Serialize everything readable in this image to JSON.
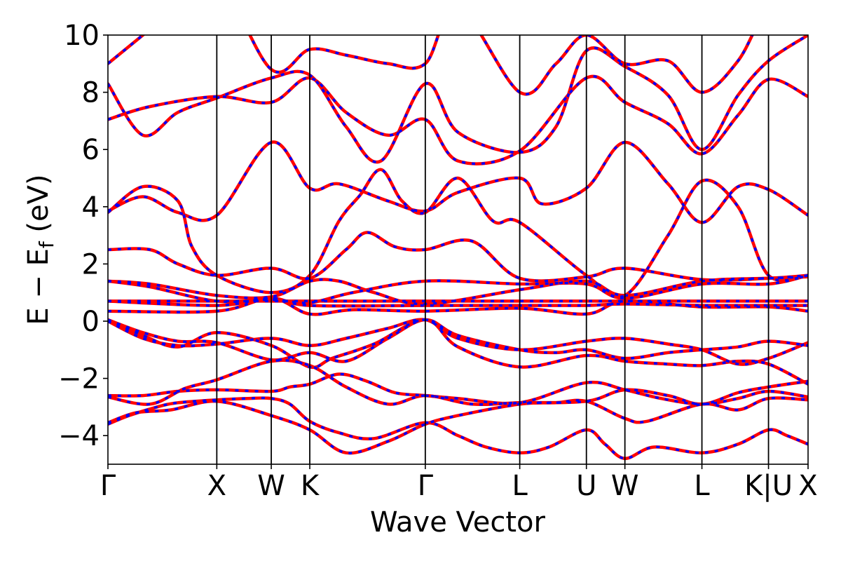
{
  "chart_data": {
    "type": "line",
    "xlabel": "Wave Vector",
    "ylabel_main": "E − E",
    "ylabel_sub": "f",
    "ylabel_unit": " (eV)",
    "ylim": [
      -5,
      10
    ],
    "yticks": [
      -4,
      -2,
      0,
      2,
      4,
      6,
      8,
      10
    ],
    "ytick_labels": [
      "−4",
      "−2",
      "0",
      "2",
      "4",
      "6",
      "8",
      "10"
    ],
    "xlim": [
      0,
      1
    ],
    "kpoints": [
      {
        "label": "Γ",
        "x": 0.0
      },
      {
        "label": "X",
        "x": 0.1555
      },
      {
        "label": "W",
        "x": 0.2333
      },
      {
        "label": "K",
        "x": 0.2883
      },
      {
        "label": "Γ",
        "x": 0.4533
      },
      {
        "label": "L",
        "x": 0.5882
      },
      {
        "label": "U",
        "x": 0.6834
      },
      {
        "label": "W",
        "x": 0.7384
      },
      {
        "label": "L",
        "x": 0.8484
      },
      {
        "label": "K|U",
        "x": 0.9435
      },
      {
        "label": "X",
        "x": 1.0
      }
    ],
    "grid": false,
    "series_styles": [
      {
        "color": "#ff0000",
        "style": "solid"
      },
      {
        "color": "#0000ff",
        "style": "dotted"
      }
    ],
    "bands": [
      [
        [
          0,
          -3.6
        ],
        [
          0.03,
          -3.3
        ],
        [
          0.07,
          -3.0
        ],
        [
          0.1,
          -2.85
        ],
        [
          0.1555,
          -2.75
        ],
        [
          0.2,
          -2.7
        ],
        [
          0.2333,
          -2.7
        ],
        [
          0.26,
          -2.9
        ],
        [
          0.2883,
          -3.5
        ],
        [
          0.33,
          -3.9
        ],
        [
          0.38,
          -4.1
        ],
        [
          0.4533,
          -3.55
        ],
        [
          0.5,
          -4.0
        ],
        [
          0.54,
          -4.4
        ],
        [
          0.5882,
          -4.6
        ],
        [
          0.63,
          -4.4
        ],
        [
          0.6834,
          -3.8
        ],
        [
          0.71,
          -4.3
        ],
        [
          0.7384,
          -4.8
        ],
        [
          0.78,
          -4.4
        ],
        [
          0.8484,
          -4.6
        ],
        [
          0.9,
          -4.3
        ],
        [
          0.9435,
          -3.8
        ],
        [
          0.97,
          -4.0
        ],
        [
          1.0,
          -4.3
        ]
      ],
      [
        [
          0,
          -3.55
        ],
        [
          0.04,
          -3.2
        ],
        [
          0.09,
          -3.1
        ],
        [
          0.1555,
          -2.8
        ],
        [
          0.2333,
          -3.3
        ],
        [
          0.2883,
          -3.8
        ],
        [
          0.34,
          -4.6
        ],
        [
          0.4,
          -4.2
        ],
        [
          0.4533,
          -3.6
        ],
        [
          0.5,
          -3.3
        ],
        [
          0.5882,
          -2.9
        ],
        [
          0.64,
          -2.85
        ],
        [
          0.6834,
          -2.8
        ],
        [
          0.7384,
          -3.4
        ],
        [
          0.77,
          -3.5
        ],
        [
          0.8484,
          -2.9
        ],
        [
          0.9,
          -3.1
        ],
        [
          0.9435,
          -2.7
        ],
        [
          1.0,
          -2.75
        ]
      ],
      [
        [
          0,
          -2.6
        ],
        [
          0.05,
          -2.6
        ],
        [
          0.1,
          -2.45
        ],
        [
          0.1555,
          -2.4
        ],
        [
          0.2333,
          -2.45
        ],
        [
          0.26,
          -2.3
        ],
        [
          0.2883,
          -2.2
        ],
        [
          0.33,
          -1.85
        ],
        [
          0.37,
          -2.1
        ],
        [
          0.41,
          -2.5
        ],
        [
          0.4533,
          -2.6
        ],
        [
          0.5,
          -2.7
        ],
        [
          0.5882,
          -2.85
        ],
        [
          0.6834,
          -2.15
        ],
        [
          0.7384,
          -2.4
        ],
        [
          0.79,
          -2.7
        ],
        [
          0.8484,
          -2.9
        ],
        [
          0.9,
          -2.7
        ],
        [
          0.9435,
          -2.45
        ],
        [
          1.0,
          -2.65
        ]
      ],
      [
        [
          0,
          -2.65
        ],
        [
          0.06,
          -2.9
        ],
        [
          0.11,
          -2.35
        ],
        [
          0.1555,
          -2.05
        ],
        [
          0.2333,
          -1.4
        ],
        [
          0.2883,
          -1.55
        ],
        [
          0.34,
          -2.3
        ],
        [
          0.4,
          -2.9
        ],
        [
          0.4533,
          -2.6
        ],
        [
          0.52,
          -2.9
        ],
        [
          0.5882,
          -2.85
        ],
        [
          0.6834,
          -2.8
        ],
        [
          0.7384,
          -2.4
        ],
        [
          0.8,
          -2.6
        ],
        [
          0.8484,
          -2.9
        ],
        [
          0.9,
          -2.5
        ],
        [
          0.9435,
          -2.3
        ],
        [
          1.0,
          -2.1
        ]
      ],
      [
        [
          0,
          0.05
        ],
        [
          0.05,
          -0.4
        ],
        [
          0.1,
          -0.7
        ],
        [
          0.1555,
          -0.75
        ],
        [
          0.2333,
          -1.35
        ],
        [
          0.2883,
          -1.1
        ],
        [
          0.34,
          -1.4
        ],
        [
          0.4,
          -0.6
        ],
        [
          0.4533,
          0.05
        ],
        [
          0.5,
          -0.5
        ],
        [
          0.5882,
          -1.0
        ],
        [
          0.64,
          -1.1
        ],
        [
          0.6834,
          -1.0
        ],
        [
          0.7384,
          -1.3
        ],
        [
          0.8,
          -1.1
        ],
        [
          0.8484,
          -1.0
        ],
        [
          0.9,
          -0.9
        ],
        [
          0.9435,
          -0.7
        ],
        [
          1.0,
          -0.85
        ]
      ],
      [
        [
          0,
          0.0
        ],
        [
          0.05,
          -0.6
        ],
        [
          0.1,
          -0.85
        ],
        [
          0.1555,
          -0.8
        ],
        [
          0.2333,
          -0.6
        ],
        [
          0.2883,
          -0.85
        ],
        [
          0.34,
          -0.6
        ],
        [
          0.4,
          -0.25
        ],
        [
          0.4533,
          0.05
        ],
        [
          0.5,
          -0.6
        ],
        [
          0.5882,
          -1.0
        ],
        [
          0.6834,
          -0.7
        ],
        [
          0.7384,
          -0.6
        ],
        [
          0.8,
          -0.8
        ],
        [
          0.8484,
          -1.0
        ],
        [
          0.9,
          -1.5
        ],
        [
          0.9435,
          -1.3
        ],
        [
          1.0,
          -0.75
        ]
      ],
      [
        [
          0,
          0.05
        ],
        [
          0.05,
          -0.5
        ],
        [
          0.1,
          -0.9
        ],
        [
          0.1555,
          -0.4
        ],
        [
          0.2333,
          -0.85
        ],
        [
          0.2883,
          -1.6
        ],
        [
          0.32,
          -1.3
        ],
        [
          0.38,
          -0.8
        ],
        [
          0.4533,
          0.05
        ],
        [
          0.5,
          -0.9
        ],
        [
          0.5882,
          -1.6
        ],
        [
          0.6834,
          -1.2
        ],
        [
          0.7384,
          -1.4
        ],
        [
          0.8,
          -1.5
        ],
        [
          0.8484,
          -1.55
        ],
        [
          0.9,
          -1.4
        ],
        [
          0.9435,
          -1.5
        ],
        [
          1.0,
          -2.2
        ]
      ],
      [
        [
          0,
          0.35
        ],
        [
          0.1555,
          0.35
        ],
        [
          0.2333,
          0.8
        ],
        [
          0.2883,
          0.25
        ],
        [
          0.35,
          0.4
        ],
        [
          0.4533,
          0.35
        ],
        [
          0.5882,
          0.45
        ],
        [
          0.6834,
          0.25
        ],
        [
          0.7384,
          0.7
        ],
        [
          0.8484,
          0.5
        ],
        [
          0.9435,
          0.5
        ],
        [
          1.0,
          0.35
        ]
      ],
      [
        [
          0,
          0.7
        ],
        [
          0.1555,
          0.55
        ],
        [
          0.2333,
          0.8
        ],
        [
          0.2883,
          0.55
        ],
        [
          0.4533,
          0.55
        ],
        [
          0.5882,
          0.55
        ],
        [
          0.6834,
          0.55
        ],
        [
          0.7384,
          0.6
        ],
        [
          0.8484,
          0.55
        ],
        [
          0.9435,
          0.55
        ],
        [
          1.0,
          0.55
        ]
      ],
      [
        [
          0,
          0.7
        ],
        [
          0.1555,
          0.7
        ],
        [
          0.2333,
          0.7
        ],
        [
          0.2883,
          0.7
        ],
        [
          0.4533,
          0.7
        ],
        [
          0.5882,
          0.7
        ],
        [
          0.6834,
          0.7
        ],
        [
          0.7384,
          0.7
        ],
        [
          0.8484,
          0.7
        ],
        [
          0.9435,
          0.7
        ],
        [
          1.0,
          0.7
        ]
      ],
      [
        [
          0,
          1.4
        ],
        [
          0.06,
          1.2
        ],
        [
          0.1555,
          0.7
        ],
        [
          0.2333,
          0.75
        ],
        [
          0.2883,
          0.65
        ],
        [
          0.35,
          1.0
        ],
        [
          0.4533,
          1.4
        ],
        [
          0.5882,
          1.3
        ],
        [
          0.6834,
          1.3
        ],
        [
          0.7384,
          0.8
        ],
        [
          0.8484,
          1.3
        ],
        [
          0.9435,
          1.3
        ],
        [
          1.0,
          1.6
        ]
      ],
      [
        [
          0,
          1.4
        ],
        [
          0.06,
          1.3
        ],
        [
          0.1555,
          0.9
        ],
        [
          0.2333,
          0.85
        ],
        [
          0.2883,
          1.4
        ],
        [
          0.33,
          1.4
        ],
        [
          0.38,
          1.0
        ],
        [
          0.4533,
          0.6
        ],
        [
          0.5882,
          1.1
        ],
        [
          0.6834,
          1.4
        ],
        [
          0.7384,
          0.9
        ],
        [
          0.8484,
          1.4
        ],
        [
          0.9435,
          1.5
        ],
        [
          1.0,
          1.55
        ]
      ],
      [
        [
          0,
          2.5
        ],
        [
          0.06,
          2.5
        ],
        [
          0.1,
          2.0
        ],
        [
          0.1555,
          1.6
        ],
        [
          0.2333,
          1.85
        ],
        [
          0.2883,
          1.5
        ],
        [
          0.34,
          2.5
        ],
        [
          0.37,
          3.1
        ],
        [
          0.41,
          2.6
        ],
        [
          0.4533,
          2.5
        ],
        [
          0.52,
          2.8
        ],
        [
          0.5882,
          1.5
        ],
        [
          0.6834,
          1.55
        ],
        [
          0.7384,
          1.85
        ],
        [
          0.8484,
          1.45
        ],
        [
          0.9435,
          1.5
        ],
        [
          1.0,
          1.6
        ]
      ],
      [
        [
          0,
          3.8
        ],
        [
          0.05,
          4.7
        ],
        [
          0.1,
          4.2
        ],
        [
          0.12,
          2.6
        ],
        [
          0.1555,
          1.6
        ],
        [
          0.2333,
          1.0
        ],
        [
          0.2883,
          1.6
        ],
        [
          0.33,
          3.5
        ],
        [
          0.36,
          4.4
        ],
        [
          0.39,
          5.3
        ],
        [
          0.42,
          4.2
        ],
        [
          0.4533,
          3.8
        ],
        [
          0.5,
          5.0
        ],
        [
          0.55,
          3.5
        ],
        [
          0.5882,
          3.45
        ],
        [
          0.6834,
          1.6
        ],
        [
          0.7384,
          0.9
        ],
        [
          0.8,
          3.0
        ],
        [
          0.8484,
          4.9
        ],
        [
          0.9,
          4.0
        ],
        [
          0.9435,
          1.6
        ],
        [
          1.0,
          1.6
        ]
      ],
      [
        [
          0,
          3.85
        ],
        [
          0.05,
          4.35
        ],
        [
          0.1,
          3.8
        ],
        [
          0.1555,
          3.7
        ],
        [
          0.2333,
          6.25
        ],
        [
          0.2883,
          4.65
        ],
        [
          0.33,
          4.8
        ],
        [
          0.4,
          4.2
        ],
        [
          0.4533,
          3.85
        ],
        [
          0.5,
          4.5
        ],
        [
          0.5882,
          5.0
        ],
        [
          0.62,
          4.1
        ],
        [
          0.6834,
          4.65
        ],
        [
          0.7384,
          6.25
        ],
        [
          0.8,
          4.8
        ],
        [
          0.8484,
          3.45
        ],
        [
          0.9,
          4.7
        ],
        [
          0.9435,
          4.6
        ],
        [
          1.0,
          3.7
        ]
      ],
      [
        [
          0,
          7.05
        ],
        [
          0.06,
          7.5
        ],
        [
          0.1555,
          7.85
        ],
        [
          0.2333,
          7.65
        ],
        [
          0.2883,
          8.5
        ],
        [
          0.34,
          7.3
        ],
        [
          0.4,
          6.5
        ],
        [
          0.4533,
          7.05
        ],
        [
          0.5,
          5.6
        ],
        [
          0.5882,
          5.95
        ],
        [
          0.6834,
          8.5
        ],
        [
          0.7384,
          7.65
        ],
        [
          0.8,
          6.9
        ],
        [
          0.8484,
          5.85
        ],
        [
          0.9,
          7.2
        ],
        [
          0.9435,
          8.45
        ],
        [
          1.0,
          7.85
        ]
      ],
      [
        [
          0,
          8.3
        ],
        [
          0.05,
          6.5
        ],
        [
          0.1,
          7.3
        ],
        [
          0.1555,
          7.8
        ],
        [
          0.2333,
          8.5
        ],
        [
          0.2883,
          8.6
        ],
        [
          0.34,
          6.8
        ],
        [
          0.39,
          5.6
        ],
        [
          0.4533,
          8.3
        ],
        [
          0.5,
          6.6
        ],
        [
          0.5882,
          5.9
        ],
        [
          0.64,
          6.8
        ],
        [
          0.6834,
          9.45
        ],
        [
          0.7384,
          8.9
        ],
        [
          0.8,
          7.9
        ],
        [
          0.8484,
          6.0
        ],
        [
          0.9,
          7.9
        ],
        [
          0.9435,
          9.1
        ],
        [
          1.0,
          10.0
        ]
      ],
      [
        [
          0,
          9.0
        ],
        [
          0.05,
          10.0
        ],
        [
          0.1,
          11.0
        ],
        [
          0.1555,
          12.0
        ],
        [
          0.2333,
          8.8
        ],
        [
          0.2883,
          9.5
        ],
        [
          0.34,
          9.3
        ],
        [
          0.4,
          9.0
        ],
        [
          0.4533,
          9.0
        ],
        [
          0.5,
          11.0
        ],
        [
          0.5882,
          8.0
        ],
        [
          0.64,
          9.0
        ],
        [
          0.6834,
          10.0
        ],
        [
          0.7384,
          9.0
        ],
        [
          0.8,
          9.1
        ],
        [
          0.8484,
          8.0
        ],
        [
          0.9,
          9.1
        ],
        [
          0.9435,
          11.0
        ],
        [
          1.0,
          12.0
        ]
      ]
    ]
  }
}
